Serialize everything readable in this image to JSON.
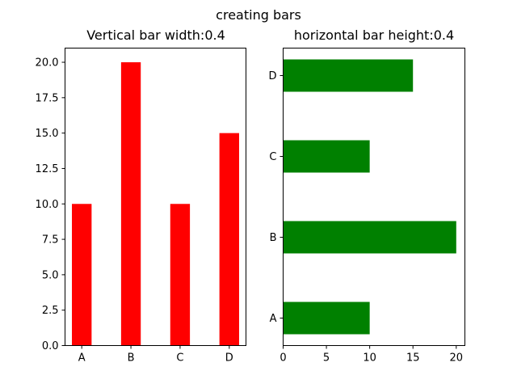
{
  "figure": {
    "suptitle": "creating bars"
  },
  "chart_data": [
    {
      "type": "bar",
      "orientation": "vertical",
      "title": "Vertical bar width:0.4",
      "categories": [
        "A",
        "B",
        "C",
        "D"
      ],
      "values": [
        10,
        20,
        10,
        15
      ],
      "bar_width": 0.4,
      "color": "#ff0000",
      "ylim": [
        0,
        21
      ],
      "yticks": [
        0.0,
        2.5,
        5.0,
        7.5,
        10.0,
        12.5,
        15.0,
        17.5,
        20.0
      ],
      "ytick_labels": [
        "0.0",
        "2.5",
        "5.0",
        "7.5",
        "10.0",
        "12.5",
        "15.0",
        "17.5",
        "20.0"
      ],
      "xlabel": "",
      "ylabel": "",
      "grid": false
    },
    {
      "type": "bar",
      "orientation": "horizontal",
      "title": "horizontal bar height:0.4",
      "categories": [
        "A",
        "B",
        "C",
        "D"
      ],
      "values": [
        10,
        20,
        10,
        15
      ],
      "bar_height": 0.4,
      "color": "#008000",
      "xlim": [
        0,
        21
      ],
      "xticks": [
        0,
        5,
        10,
        15,
        20
      ],
      "xtick_labels": [
        "0",
        "5",
        "10",
        "15",
        "20"
      ],
      "xlabel": "",
      "ylabel": "",
      "grid": false
    }
  ]
}
